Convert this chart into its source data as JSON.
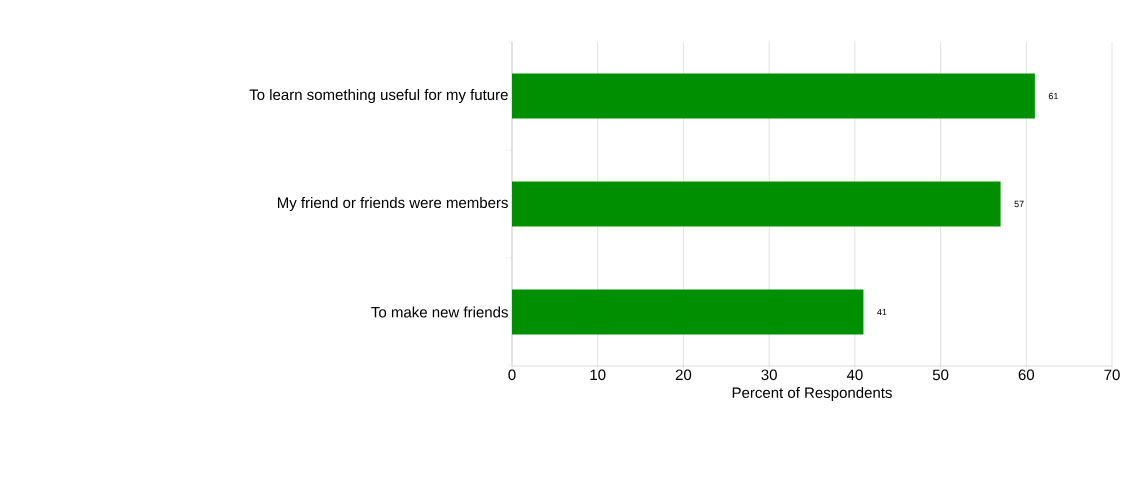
{
  "chart_data": {
    "type": "bar",
    "orientation": "horizontal",
    "categories": [
      "To learn something useful for my future",
      "My friend or friends were members",
      "To make new friends"
    ],
    "values": [
      61,
      57,
      41
    ],
    "color": "#008f00",
    "xlabel": "Percent of Respondents",
    "xlim": [
      0,
      70
    ],
    "xticks": [
      0,
      10,
      20,
      30,
      40,
      50,
      60,
      70
    ],
    "grid": "x",
    "data_labels": true
  }
}
